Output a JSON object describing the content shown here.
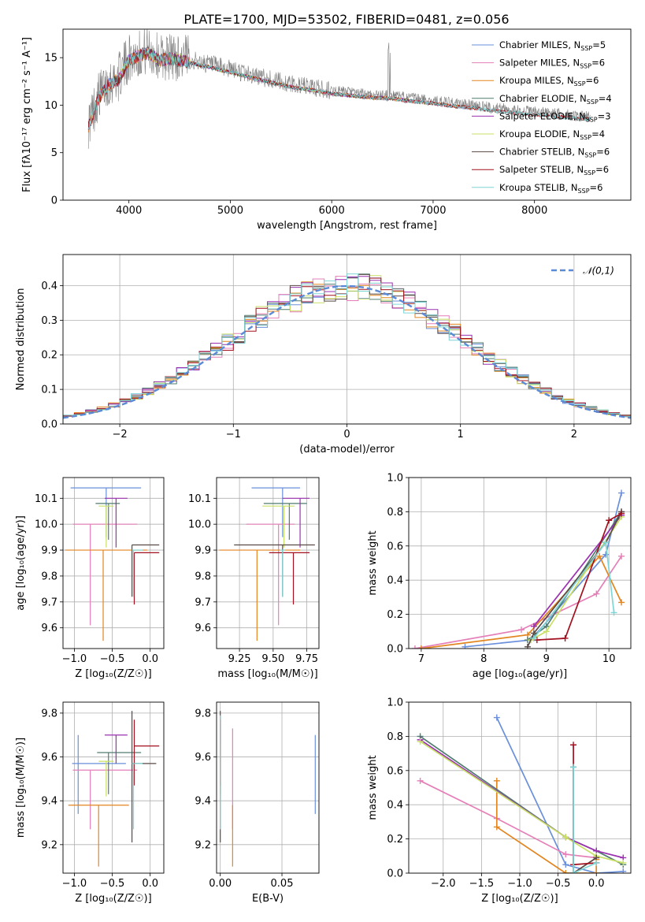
{
  "figure_title": "PLATE=1700, MJD=53502, FIBERID=0481, z=0.056",
  "model_colors": [
    "#6a8fdb",
    "#e57fb8",
    "#e3851f",
    "#4f7c6f",
    "#9b30b0",
    "#c9e066",
    "#5a4a45",
    "#a3101f",
    "#7fd6d6"
  ],
  "chart_data": [
    {
      "id": "spectrum",
      "type": "line",
      "title": "PLATE=1700, MJD=53502, FIBERID=0481, z=0.056",
      "xlabel": "wavelength [Angstrom, rest frame]",
      "ylabel": "Flux [fλ10⁻¹⁷ erg cm⁻² s⁻¹ A⁻¹]",
      "xlim": [
        3350,
        8950
      ],
      "ylim": [
        0,
        18
      ],
      "xticks": [
        "4000",
        "5000",
        "6000",
        "7000",
        "8000"
      ],
      "yticks": [
        "0",
        "5",
        "10",
        "15"
      ],
      "grid": false,
      "legend_position": "top-right",
      "data_line": {
        "name": "data",
        "color": "#808080",
        "x": [
          3600,
          3700,
          3800,
          3900,
          4000,
          4100,
          4200,
          4300,
          4400,
          4500,
          4600,
          4700,
          4800,
          4900,
          5000,
          5200,
          5400,
          5600,
          5800,
          6000,
          6200,
          6400,
          6600,
          6800,
          7000,
          7200,
          7400,
          7600,
          7800,
          8000,
          8200,
          8400,
          8550
        ],
        "y": [
          8.0,
          11.0,
          12.5,
          13.0,
          15.0,
          15.5,
          15.8,
          15.0,
          15.2,
          15.0,
          14.8,
          14.5,
          14.3,
          14.0,
          13.8,
          13.2,
          12.7,
          12.2,
          11.9,
          11.5,
          11.3,
          11.1,
          11.0,
          10.7,
          10.5,
          10.2,
          10.0,
          9.7,
          9.5,
          9.3,
          9.1,
          8.9,
          8.8
        ]
      },
      "series": [
        {
          "name": "Chabrier MILES, N_SSP=5",
          "name_main": "Chabrier MILES, N",
          "name_sub": "SSP",
          "name_tail": "=5",
          "color": "#6a8fdb",
          "x_range": [
            3600,
            7400
          ]
        },
        {
          "name": "Salpeter MILES, N_SSP=6",
          "name_main": "Salpeter MILES, N",
          "name_sub": "SSP",
          "name_tail": "=6",
          "color": "#e57fb8",
          "x_range": [
            3600,
            7400
          ]
        },
        {
          "name": "Kroupa MILES, N_SSP=6",
          "name_main": "Kroupa MILES, N",
          "name_sub": "SSP",
          "name_tail": "=6",
          "color": "#e3851f",
          "x_range": [
            3600,
            7400
          ]
        },
        {
          "name": "Chabrier ELODIE, N_SSP=4",
          "name_main": "Chabrier ELODIE, N",
          "name_sub": "SSP",
          "name_tail": "=4",
          "color": "#4f7c6f",
          "x_range": [
            3900,
            6800
          ]
        },
        {
          "name": "Salpeter ELODIE, N_SSP=3",
          "name_main": "Salpeter ELODIE, N",
          "name_sub": "SSP",
          "name_tail": "=3",
          "color": "#9b30b0",
          "x_range": [
            3900,
            6800
          ]
        },
        {
          "name": "Kroupa ELODIE, N_SSP=4",
          "name_main": "Kroupa ELODIE, N",
          "name_sub": "SSP",
          "name_tail": "=4",
          "color": "#c9e066",
          "x_range": [
            3900,
            6800
          ]
        },
        {
          "name": "Chabrier STELIB, N_SSP=6",
          "name_main": "Chabrier STELIB, N",
          "name_sub": "SSP",
          "name_tail": "=6",
          "color": "#5a4a45",
          "x_range": [
            3600,
            8550
          ]
        },
        {
          "name": "Salpeter STELIB, N_SSP=6",
          "name_main": "Salpeter STELIB, N",
          "name_sub": "SSP",
          "name_tail": "=6",
          "color": "#a3101f",
          "x_range": [
            3600,
            8550
          ]
        },
        {
          "name": "Kroupa STELIB, N_SSP=6",
          "name_main": "Kroupa STELIB, N",
          "name_sub": "SSP",
          "name_tail": "=6",
          "color": "#7fd6d6",
          "x_range": [
            3600,
            8550
          ]
        }
      ]
    },
    {
      "id": "residuals",
      "type": "histogram",
      "xlabel": "(data-model)/error",
      "ylabel": "Normed distribution",
      "xlim": [
        -2.5,
        2.5
      ],
      "ylim": [
        0,
        0.49
      ],
      "xticks": [
        "−2",
        "−1",
        "0",
        "1",
        "2"
      ],
      "yticks": [
        "0.0",
        "0.1",
        "0.2",
        "0.3",
        "0.4"
      ],
      "grid": true,
      "bin_width": 0.1,
      "legend_position": "top-right",
      "reference": {
        "name": "𝒩(0,1)",
        "color": "#5b8bd6",
        "mean": 0,
        "sigma": 1
      }
    },
    {
      "id": "age-vs-Z",
      "type": "errorbar",
      "xlabel": "Z [log₁₀(Z/Z☉)]",
      "ylabel": "age  [log₁₀(age/yr)]",
      "xlim": [
        -1.15,
        0.18
      ],
      "ylim": [
        9.52,
        10.18
      ],
      "xticks": [
        "−1.0",
        "−0.5",
        "0.0"
      ],
      "yticks": [
        "9.6",
        "9.7",
        "9.8",
        "9.9",
        "10.0",
        "10.1"
      ],
      "grid": true,
      "points": [
        {
          "x": -0.58,
          "xerr": [
            0.47,
            0.46
          ],
          "y": 10.14,
          "yerr": [
            0.19,
            0.0
          ]
        },
        {
          "x": -0.79,
          "xerr": [
            0.23,
            0.62
          ],
          "y": 10.0,
          "yerr": [
            0.39,
            0.0
          ]
        },
        {
          "x": -0.62,
          "xerr": [
            0.5,
            0.58
          ],
          "y": 9.9,
          "yerr": [
            0.35,
            0.0
          ]
        },
        {
          "x": -0.55,
          "xerr": [
            0.17,
            0.15
          ],
          "y": 10.08,
          "yerr": [
            0.14,
            0.0
          ]
        },
        {
          "x": -0.45,
          "xerr": [
            0.15,
            0.15
          ],
          "y": 10.1,
          "yerr": [
            0.19,
            0.0
          ]
        },
        {
          "x": -0.58,
          "xerr": [
            0.1,
            0.1
          ],
          "y": 10.07,
          "yerr": [
            0.16,
            0.0
          ]
        },
        {
          "x": -0.24,
          "xerr": [
            0.0,
            0.36
          ],
          "y": 9.92,
          "yerr": [
            0.2,
            0.0
          ]
        },
        {
          "x": -0.21,
          "xerr": [
            0.0,
            0.33
          ],
          "y": 9.89,
          "yerr": [
            0.2,
            0.0
          ]
        },
        {
          "x": -0.22,
          "xerr": [
            0.02,
            0.12
          ],
          "y": 9.9,
          "yerr": [
            0.18,
            0.0
          ]
        }
      ]
    },
    {
      "id": "age-vs-mass",
      "type": "errorbar",
      "xlabel": "mass [log₁₀(M/M☉)]",
      "ylabel": "",
      "xlim": [
        9.08,
        9.84
      ],
      "ylim": [
        9.52,
        10.18
      ],
      "xticks": [
        "9.25",
        "9.50",
        "9.75"
      ],
      "yticks": [
        "9.6",
        "9.7",
        "9.8",
        "9.9",
        "10.0",
        "10.1"
      ],
      "grid": true,
      "points": [
        {
          "x": 9.57,
          "xerr": [
            0.23,
            0.13
          ],
          "y": 10.14,
          "yerr": [
            0.19,
            0.0
          ]
        },
        {
          "x": 9.54,
          "xerr": [
            0.24,
            0.12
          ],
          "y": 10.0,
          "yerr": [
            0.39,
            0.0
          ]
        },
        {
          "x": 9.38,
          "xerr": [
            0.28,
            0.32
          ],
          "y": 9.9,
          "yerr": [
            0.35,
            0.0
          ]
        },
        {
          "x": 9.62,
          "xerr": [
            0.19,
            0.13
          ],
          "y": 10.08,
          "yerr": [
            0.14,
            0.0
          ]
        },
        {
          "x": 9.7,
          "xerr": [
            0.13,
            0.07
          ],
          "y": 10.1,
          "yerr": [
            0.19,
            0.0
          ]
        },
        {
          "x": 9.58,
          "xerr": [
            0.16,
            0.08
          ],
          "y": 10.07,
          "yerr": [
            0.16,
            0.0
          ]
        },
        {
          "x": 9.57,
          "xerr": [
            0.36,
            0.24
          ],
          "y": 9.92,
          "yerr": [
            0.2,
            0.0
          ]
        },
        {
          "x": 9.65,
          "xerr": [
            0.18,
            0.12
          ],
          "y": 9.89,
          "yerr": [
            0.2,
            0.0
          ]
        },
        {
          "x": 9.57,
          "xerr": [
            0.02,
            0.02
          ],
          "y": 9.9,
          "yerr": [
            0.18,
            0.0
          ]
        }
      ]
    },
    {
      "id": "massweight-vs-age",
      "type": "line",
      "xlabel": "age  [log₁₀(age/yr)]",
      "ylabel": "mass weight",
      "xlim": [
        6.8,
        10.35
      ],
      "ylim": [
        0,
        1.0
      ],
      "xticks": [
        "7",
        "8",
        "9",
        "10"
      ],
      "yticks": [
        "0.0",
        "0.2",
        "0.4",
        "0.6",
        "0.8",
        "1.0"
      ],
      "grid": true,
      "marker": "+",
      "series": [
        {
          "color": "#6a8fdb",
          "x": [
            7.7,
            8.75,
            9.95,
            10.2
          ],
          "y": [
            0.01,
            0.05,
            0.55,
            0.91
          ]
        },
        {
          "color": "#e57fb8",
          "x": [
            6.9,
            8.6,
            9.8,
            10.2
          ],
          "y": [
            0.0,
            0.11,
            0.32,
            0.54
          ]
        },
        {
          "color": "#e3851f",
          "x": [
            7.0,
            8.7,
            9.85,
            10.2
          ],
          "y": [
            0.0,
            0.08,
            0.54,
            0.27
          ]
        },
        {
          "color": "#4f7c6f",
          "x": [
            8.7,
            9.0,
            10.2
          ],
          "y": [
            0.05,
            0.13,
            0.8
          ]
        },
        {
          "color": "#9b30b0",
          "x": [
            8.8,
            10.2
          ],
          "y": [
            0.13,
            0.78
          ]
        },
        {
          "color": "#c9e066",
          "x": [
            8.75,
            9.0,
            10.2
          ],
          "y": [
            0.05,
            0.1,
            0.77
          ]
        },
        {
          "color": "#5a4a45",
          "x": [
            8.7,
            8.8,
            9.95,
            10.2
          ],
          "y": [
            0.01,
            0.09,
            0.62,
            0.8
          ]
        },
        {
          "color": "#a3101f",
          "x": [
            8.85,
            9.3,
            10.0,
            10.2
          ],
          "y": [
            0.05,
            0.06,
            0.75,
            0.79
          ]
        },
        {
          "color": "#7fd6d6",
          "x": [
            8.8,
            9.95,
            10.08
          ],
          "y": [
            0.06,
            0.62,
            0.21
          ]
        }
      ]
    },
    {
      "id": "mass-vs-Z",
      "type": "errorbar",
      "xlabel": "Z [log₁₀(Z/Z☉)]",
      "ylabel": "mass [log₁₀(M/M☉)]",
      "xlim": [
        -1.15,
        0.18
      ],
      "ylim": [
        9.07,
        9.85
      ],
      "xticks": [
        "−1.0",
        "−0.5",
        "0.0"
      ],
      "yticks": [
        "9.2",
        "9.4",
        "9.6",
        "9.8"
      ],
      "grid": true,
      "points": [
        {
          "x": -0.95,
          "xerr": [
            0.08,
            0.63
          ],
          "y": 9.57,
          "yerr": [
            0.23,
            0.13
          ]
        },
        {
          "x": -0.79,
          "xerr": [
            0.23,
            0.62
          ],
          "y": 9.54,
          "yerr": [
            0.27,
            0.0
          ]
        },
        {
          "x": -0.68,
          "xerr": [
            0.4,
            0.4
          ],
          "y": 9.38,
          "yerr": [
            0.28,
            0.0
          ]
        },
        {
          "x": -0.55,
          "xerr": [
            0.15,
            0.43
          ],
          "y": 9.62,
          "yerr": [
            0.19,
            0.0
          ]
        },
        {
          "x": -0.45,
          "xerr": [
            0.15,
            0.15
          ],
          "y": 9.7,
          "yerr": [
            0.13,
            0.0
          ]
        },
        {
          "x": -0.58,
          "xerr": [
            0.1,
            0.1
          ],
          "y": 9.58,
          "yerr": [
            0.16,
            0.0
          ]
        },
        {
          "x": -0.24,
          "xerr": [
            0.0,
            0.32
          ],
          "y": 9.57,
          "yerr": [
            0.36,
            0.24
          ]
        },
        {
          "x": -0.21,
          "xerr": [
            0.0,
            0.33
          ],
          "y": 9.65,
          "yerr": [
            0.18,
            0.12
          ]
        },
        {
          "x": -0.22,
          "xerr": [
            0.02,
            0.12
          ],
          "y": 9.57,
          "yerr": [
            0.3,
            0.0
          ]
        }
      ]
    },
    {
      "id": "mass-vs-ebv",
      "type": "errorbar",
      "xlabel": "E(B-V)",
      "ylabel": "",
      "xlim": [
        -0.003,
        0.08
      ],
      "ylim": [
        9.07,
        9.85
      ],
      "xticks": [
        "0.00",
        "0.05"
      ],
      "yticks": [
        "9.2",
        "9.4",
        "9.6",
        "9.8"
      ],
      "grid": true,
      "points": [
        {
          "x": 0.077,
          "xerr": [
            0,
            0
          ],
          "y": 9.57,
          "yerr": [
            0.23,
            0.13
          ]
        },
        {
          "x": 0.01,
          "xerr": [
            0,
            0
          ],
          "y": 9.54,
          "yerr": [
            0.27,
            0.19
          ]
        },
        {
          "x": 0.01,
          "xerr": [
            0,
            0
          ],
          "y": 9.38,
          "yerr": [
            0.28,
            0.0
          ]
        },
        {
          "x": 0.0,
          "xerr": [
            0,
            0
          ],
          "y": 9.62,
          "yerr": [
            0.19,
            0.13
          ]
        },
        {
          "x": 0.0,
          "xerr": [
            0,
            0
          ],
          "y": 9.7,
          "yerr": [
            0.13,
            0.07
          ]
        },
        {
          "x": 0.0,
          "xerr": [
            0,
            0
          ],
          "y": 9.58,
          "yerr": [
            0.16,
            0.08
          ]
        },
        {
          "x": 0.0,
          "xerr": [
            0,
            0
          ],
          "y": 9.57,
          "yerr": [
            0.36,
            0.24
          ]
        },
        {
          "x": 0.0,
          "xerr": [
            0,
            0
          ],
          "y": 9.65,
          "yerr": [
            0.18,
            0.12
          ]
        },
        {
          "x": 0.0,
          "xerr": [
            0,
            0
          ],
          "y": 9.57,
          "yerr": [
            0.3,
            0.22
          ]
        }
      ]
    },
    {
      "id": "massweight-vs-Z",
      "type": "line",
      "xlabel": "Z [log₁₀(Z/Z☉)]",
      "ylabel": "mass weight",
      "xlim": [
        -2.45,
        0.45
      ],
      "ylim": [
        0,
        1.0
      ],
      "xticks": [
        "−2.0",
        "−1.5",
        "−1.0",
        "−0.5",
        "0.0"
      ],
      "yticks": [
        "0.0",
        "0.2",
        "0.4",
        "0.6",
        "0.8",
        "1.0"
      ],
      "grid": true,
      "marker": "+",
      "series": [
        {
          "color": "#6a8fdb",
          "x": [
            -1.3,
            -0.4,
            0.0,
            0.35
          ],
          "y": [
            0.91,
            0.05,
            0.0,
            0.01
          ]
        },
        {
          "color": "#e57fb8",
          "x": [
            -2.3,
            -1.3,
            -0.4,
            0.0
          ],
          "y": [
            0.54,
            0.32,
            0.11,
            0.09
          ]
        },
        {
          "color": "#e3851f",
          "x": [
            -1.3,
            -1.3,
            -0.4,
            0.0,
            0.0
          ],
          "y": [
            0.54,
            0.27,
            0.0,
            0.0,
            0.08
          ]
        },
        {
          "color": "#4f7c6f",
          "x": [
            -2.3,
            -0.4,
            0.0,
            0.35
          ],
          "y": [
            0.8,
            0.21,
            0.13,
            0.05
          ]
        },
        {
          "color": "#9b30b0",
          "x": [
            -2.3,
            -0.4,
            0.0,
            0.35
          ],
          "y": [
            0.78,
            0.21,
            0.13,
            0.09
          ]
        },
        {
          "color": "#c9e066",
          "x": [
            -2.3,
            -0.4,
            0.0,
            0.35
          ],
          "y": [
            0.77,
            0.21,
            0.1,
            0.06
          ]
        },
        {
          "color": "#5a4a45",
          "x": [
            -0.3,
            -0.3,
            0.0
          ],
          "y": [
            0.62,
            0.0,
            0.09
          ]
        },
        {
          "color": "#a3101f",
          "x": [
            -0.3,
            -0.3,
            0.0
          ],
          "y": [
            0.75,
            0.05,
            0.06
          ]
        },
        {
          "color": "#7fd6d6",
          "x": [
            -0.3,
            -0.3,
            0.0
          ],
          "y": [
            0.62,
            0.0,
            0.06
          ]
        }
      ]
    }
  ]
}
